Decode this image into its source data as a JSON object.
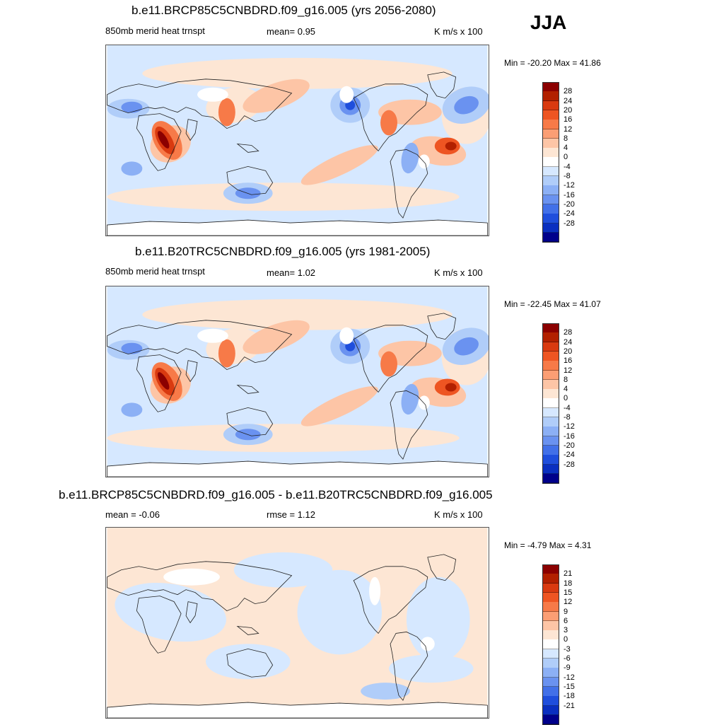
{
  "season": "JJA",
  "panels": [
    {
      "id": "future",
      "title": "b.e11.BRCP85C5CNBDRD.f09_g16.005 (yrs 2056-2080)",
      "left_label": "850mb merid heat trnspt",
      "center_label": "mean=   0.95",
      "units": "K m/s x 100",
      "minmax": "Min = -20.20 Max =  41.86",
      "colorbar_labels": [
        "28",
        "24",
        "20",
        "16",
        "12",
        "8",
        "4",
        "0",
        "-4",
        "-8",
        "-12",
        "-16",
        "-20",
        "-24",
        "-28"
      ]
    },
    {
      "id": "historical",
      "title": "b.e11.B20TRC5CNBDRD.f09_g16.005 (yrs 1981-2005)",
      "left_label": "850mb merid heat trnspt",
      "center_label": "mean=   1.02",
      "units": "K m/s x 100",
      "minmax": "Min = -22.45 Max =  41.07",
      "colorbar_labels": [
        "28",
        "24",
        "20",
        "16",
        "12",
        "8",
        "4",
        "0",
        "-4",
        "-8",
        "-12",
        "-16",
        "-20",
        "-24",
        "-28"
      ]
    },
    {
      "id": "difference",
      "title": "b.e11.BRCP85C5CNBDRD.f09_g16.005 - b.e11.B20TRC5CNBDRD.f09_g16.005",
      "left_label": "mean =  -0.06",
      "center_label": "rmse =   1.12",
      "units": "K m/s x 100",
      "minmax": "Min =  -4.79 Max =   4.31",
      "colorbar_labels": [
        "21",
        "18",
        "15",
        "12",
        "9",
        "6",
        "3",
        "0",
        "-3",
        "-6",
        "-9",
        "-12",
        "-15",
        "-18",
        "-21"
      ]
    }
  ],
  "colors": {
    "scale": [
      "#8b0000",
      "#b22000",
      "#d93a10",
      "#ee5522",
      "#f77a48",
      "#fb9e74",
      "#fdc5a6",
      "#fde6d4",
      "#ffffff",
      "#d6e8ff",
      "#b0cdf9",
      "#8cb0f5",
      "#6a92f0",
      "#4270e8",
      "#1f4edc",
      "#0a2fc0",
      "#00008b"
    ],
    "ocean_neutral": "#fde6d4",
    "land_outline": "#222222"
  }
}
